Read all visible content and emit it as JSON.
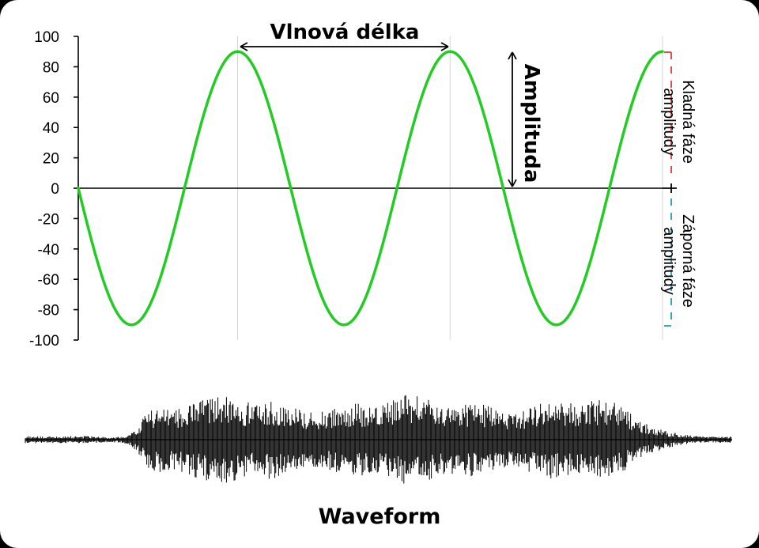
{
  "chart_data": {
    "type": "line",
    "title": "",
    "xlabel": "",
    "ylabel": "",
    "ylim": [
      -100,
      100
    ],
    "yticks": [
      100,
      80,
      60,
      40,
      20,
      0,
      -20,
      -40,
      -60,
      -80,
      -100
    ],
    "x_range_in_periods": [
      0,
      2.75
    ],
    "grid": "vertical lines at crests",
    "series": [
      {
        "amplitude": 90,
        "phase": "starts at 0, falls first",
        "color": "#22cc22"
      }
    ]
  },
  "annotations": {
    "wavelength_label": "Vlnová délka",
    "amplitude_label": "Amplituda",
    "positive_phase_label": [
      "Kladná fáze",
      "amplitudy"
    ],
    "negative_phase_label": [
      "Záporná fáze",
      "amplitudy"
    ]
  },
  "waveform": {
    "label": "Waveform",
    "color": "#000000"
  },
  "colors": {
    "wave": "#22cc22",
    "positive_bracket": "#e05050",
    "negative_bracket": "#30a8c8",
    "background": "#ffffff",
    "frame": "#000000"
  }
}
